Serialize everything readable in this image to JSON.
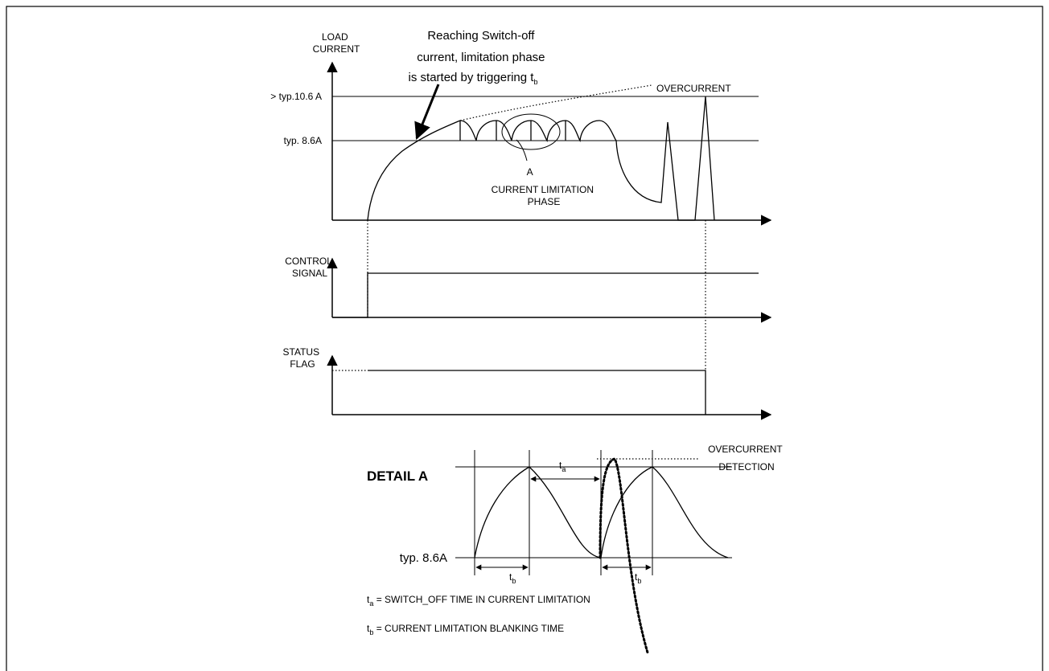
{
  "load_current_panel": {
    "axis_label_line1": "LOAD",
    "axis_label_line2": "CURRENT",
    "level_high": "> typ.10.6 A",
    "level_low": "typ. 8.6A",
    "overcurrent_label": "OVERCURRENT",
    "note_line1": "Reaching Switch-off",
    "note_line2": "current, limitation phase",
    "note_line3_prefix": "is started by triggering t",
    "note_line3_sub": "b",
    "phase_label_line1": "A",
    "phase_label_line2": "CURRENT LIMITATION",
    "phase_label_line3": "PHASE"
  },
  "control_panel": {
    "axis_label_line1": "CONTROL",
    "axis_label_line2": "SIGNAL"
  },
  "status_panel": {
    "axis_label_line1": "STATUS",
    "axis_label_line2": "FLAG"
  },
  "detail_panel": {
    "title": "DETAIL A",
    "detection_line1": "OVERCURRENT",
    "detection_line2": "DETECTION",
    "level_low": "typ. 8.6A",
    "ta_symbol": "t",
    "ta_sub": "a",
    "tb_symbol": "t",
    "tb_sub": "b"
  },
  "legend": {
    "ta_symbol": "t",
    "ta_sub": "a",
    "ta_text": " = SWITCH_OFF TIME IN CURRENT LIMITATION",
    "tb_symbol": "t",
    "tb_sub": "b",
    "tb_text": " = CURRENT LIMITATION BLANKING TIME"
  }
}
